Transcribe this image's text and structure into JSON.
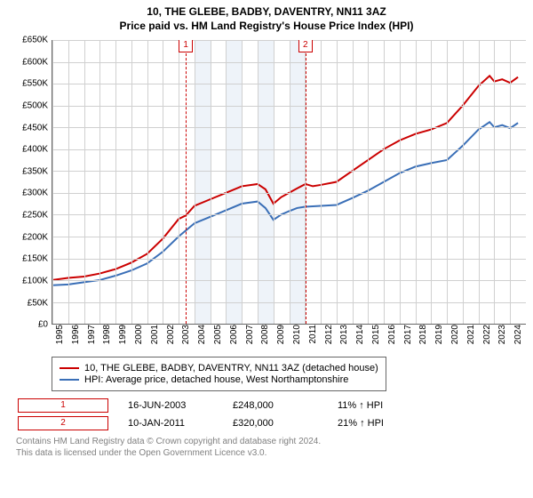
{
  "title_line1": "10, THE GLEBE, BADBY, DAVENTRY, NN11 3AZ",
  "title_line2": "Price paid vs. HM Land Registry's House Price Index (HPI)",
  "title_fontsize": 12,
  "chart": {
    "type": "line",
    "background_color": "#ffffff",
    "grid_color": "#d0d0d0",
    "axis_fontsize": 10,
    "y": {
      "min": 0,
      "max": 650000,
      "step": 50000,
      "labels": [
        "£0",
        "£50K",
        "£100K",
        "£150K",
        "£200K",
        "£250K",
        "£300K",
        "£350K",
        "£400K",
        "£450K",
        "£500K",
        "£550K",
        "£600K",
        "£650K"
      ]
    },
    "x": {
      "min": 1995,
      "max": 2025,
      "step": 1,
      "labels": [
        "1995",
        "1996",
        "1997",
        "1998",
        "1999",
        "2000",
        "2001",
        "2002",
        "2003",
        "2004",
        "2005",
        "2006",
        "2007",
        "2008",
        "2009",
        "2010",
        "2011",
        "2012",
        "2013",
        "2014",
        "2015",
        "2016",
        "2017",
        "2018",
        "2019",
        "2020",
        "2021",
        "2022",
        "2023",
        "2024"
      ]
    },
    "alt_bg_band": {
      "start": 2003,
      "end": 2011,
      "color": "#eef3f9"
    },
    "series": [
      {
        "name": "price_paid",
        "color": "#cb0000",
        "line_width": 2,
        "points": [
          [
            1995,
            100000
          ],
          [
            1996,
            105000
          ],
          [
            1997,
            108000
          ],
          [
            1998,
            115000
          ],
          [
            1999,
            125000
          ],
          [
            2000,
            140000
          ],
          [
            2001,
            160000
          ],
          [
            2002,
            195000
          ],
          [
            2003,
            240000
          ],
          [
            2003.45,
            248000
          ],
          [
            2004,
            270000
          ],
          [
            2005,
            285000
          ],
          [
            2006,
            300000
          ],
          [
            2007,
            315000
          ],
          [
            2008,
            320000
          ],
          [
            2008.5,
            308000
          ],
          [
            2009,
            275000
          ],
          [
            2009.5,
            290000
          ],
          [
            2010,
            300000
          ],
          [
            2010.5,
            310000
          ],
          [
            2011.03,
            320000
          ],
          [
            2011.5,
            315000
          ],
          [
            2012,
            318000
          ],
          [
            2013,
            325000
          ],
          [
            2014,
            350000
          ],
          [
            2015,
            375000
          ],
          [
            2016,
            400000
          ],
          [
            2017,
            420000
          ],
          [
            2018,
            435000
          ],
          [
            2019,
            445000
          ],
          [
            2020,
            460000
          ],
          [
            2021,
            500000
          ],
          [
            2022,
            545000
          ],
          [
            2022.7,
            568000
          ],
          [
            2023,
            555000
          ],
          [
            2023.5,
            560000
          ],
          [
            2024,
            552000
          ],
          [
            2024.5,
            565000
          ]
        ]
      },
      {
        "name": "hpi",
        "color": "#3a6fb7",
        "line_width": 2,
        "points": [
          [
            1995,
            88000
          ],
          [
            1996,
            90000
          ],
          [
            1997,
            95000
          ],
          [
            1998,
            100000
          ],
          [
            1999,
            110000
          ],
          [
            2000,
            122000
          ],
          [
            2001,
            138000
          ],
          [
            2002,
            165000
          ],
          [
            2003,
            200000
          ],
          [
            2004,
            230000
          ],
          [
            2005,
            245000
          ],
          [
            2006,
            260000
          ],
          [
            2007,
            275000
          ],
          [
            2008,
            280000
          ],
          [
            2008.5,
            265000
          ],
          [
            2009,
            238000
          ],
          [
            2009.5,
            250000
          ],
          [
            2010,
            258000
          ],
          [
            2010.5,
            265000
          ],
          [
            2011,
            268000
          ],
          [
            2012,
            270000
          ],
          [
            2013,
            272000
          ],
          [
            2014,
            288000
          ],
          [
            2015,
            305000
          ],
          [
            2016,
            325000
          ],
          [
            2017,
            345000
          ],
          [
            2018,
            360000
          ],
          [
            2019,
            368000
          ],
          [
            2020,
            375000
          ],
          [
            2021,
            408000
          ],
          [
            2022,
            445000
          ],
          [
            2022.7,
            462000
          ],
          [
            2023,
            450000
          ],
          [
            2023.5,
            455000
          ],
          [
            2024,
            448000
          ],
          [
            2024.5,
            460000
          ]
        ]
      }
    ],
    "markers": [
      {
        "n": "1",
        "x": 2003.45,
        "color": "#cb0000"
      },
      {
        "n": "2",
        "x": 2011.03,
        "color": "#cb0000"
      }
    ]
  },
  "legend": {
    "items": [
      {
        "color": "#cb0000",
        "label": "10, THE GLEBE, BADBY, DAVENTRY, NN11 3AZ (detached house)"
      },
      {
        "color": "#3a6fb7",
        "label": "HPI: Average price, detached house, West Northamptonshire"
      }
    ],
    "fontsize": 11
  },
  "transactions": [
    {
      "n": "1",
      "color": "#cb0000",
      "date": "16-JUN-2003",
      "price": "£248,000",
      "vs": "11% ↑ HPI"
    },
    {
      "n": "2",
      "color": "#cb0000",
      "date": "10-JAN-2011",
      "price": "£320,000",
      "vs": "21% ↑ HPI"
    }
  ],
  "footer_line1": "Contains HM Land Registry data © Crown copyright and database right 2024.",
  "footer_line2": "This data is licensed under the Open Government Licence v3.0.",
  "footer_fontsize": 10,
  "body_fontsize": 11
}
